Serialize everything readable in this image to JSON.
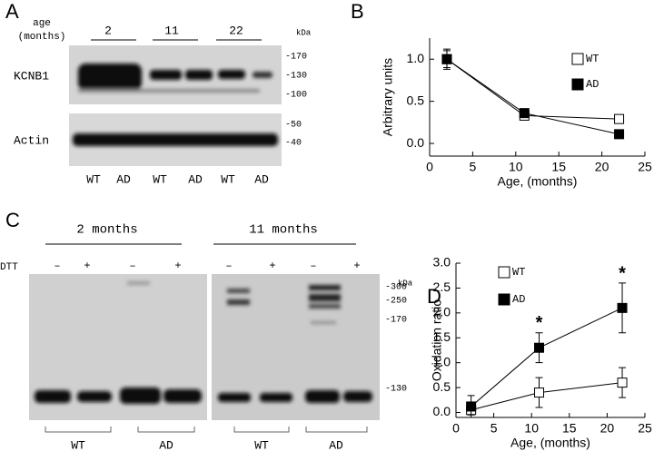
{
  "panel_a": {
    "label": "A",
    "age_label": [
      "age",
      "(months)"
    ],
    "ages": [
      "2",
      "11",
      "22"
    ],
    "kda": "kDa",
    "blots": [
      {
        "name": "KCNB1",
        "markers": [
          "-170",
          "-130",
          "-100"
        ]
      },
      {
        "name": "Actin",
        "markers": [
          "-50",
          "-40"
        ]
      }
    ],
    "lanes": [
      "WT",
      "AD",
      "WT",
      "AD",
      "WT",
      "AD"
    ]
  },
  "panel_c": {
    "label": "C",
    "groups": [
      "2 months",
      "11 months"
    ],
    "treatment": "DTT",
    "signs": [
      "–",
      "+",
      "–",
      "+",
      "–",
      "+",
      "–",
      "+"
    ],
    "kda": "kDa",
    "markers": [
      "-300",
      "-250",
      "-170",
      "-130"
    ],
    "lanes": [
      "WT",
      "AD",
      "WT",
      "AD"
    ]
  },
  "chart_data": [
    {
      "type": "line",
      "label": "B",
      "ylabel": "Arbitrary units",
      "xlabel": "Age, (months)",
      "xlim": [
        0,
        25
      ],
      "xticks": [
        0,
        5,
        10,
        15,
        20,
        25
      ],
      "ylim": [
        -0.15,
        1.25
      ],
      "yticks": [
        {
          "value": 0,
          "label": "0.0"
        },
        0.5,
        {
          "value": 1,
          "label": "1.0"
        }
      ],
      "series": [
        {
          "name": "WT",
          "color": "#000000",
          "fill": "none",
          "x": [
            2,
            11,
            22
          ],
          "values": [
            1.0,
            0.33,
            0.29
          ],
          "errors": [
            0.1,
            0.05,
            0.03
          ]
        },
        {
          "name": "AD",
          "color": "#000000",
          "fill": "#000000",
          "x": [
            2,
            11,
            22
          ],
          "values": [
            1.0,
            0.36,
            0.11
          ],
          "errors": [
            0.12,
            0.04,
            0.05
          ]
        }
      ]
    },
    {
      "type": "line",
      "label": "D",
      "ylabel": "Oxidation ratio",
      "xlabel": "Age, (months)",
      "xlim": [
        0,
        25
      ],
      "xticks": [
        0,
        5,
        10,
        15,
        20,
        25
      ],
      "ylim": [
        -0.1,
        3.0
      ],
      "yticks": [
        {
          "value": 0,
          "label": "0.0"
        },
        0.5,
        {
          "value": 1,
          "label": "1.0"
        },
        1.5,
        {
          "value": 2,
          "label": "2.0"
        },
        2.5,
        {
          "value": 3,
          "label": "3.0"
        }
      ],
      "series": [
        {
          "name": "WT",
          "color": "#000000",
          "fill": "none",
          "x": [
            2,
            11,
            22
          ],
          "values": [
            0.05,
            0.4,
            0.6
          ],
          "errors": [
            0.1,
            0.3,
            0.3
          ]
        },
        {
          "name": "AD",
          "color": "#000000",
          "fill": "#000000",
          "x": [
            2,
            11,
            22
          ],
          "values": [
            0.12,
            1.3,
            2.1
          ],
          "errors": [
            0.22,
            0.3,
            0.5
          ]
        }
      ],
      "annotations": [
        {
          "text": "*",
          "x": 11,
          "y": 1.78
        },
        {
          "text": "*",
          "x": 22,
          "y": 2.78
        }
      ]
    }
  ]
}
